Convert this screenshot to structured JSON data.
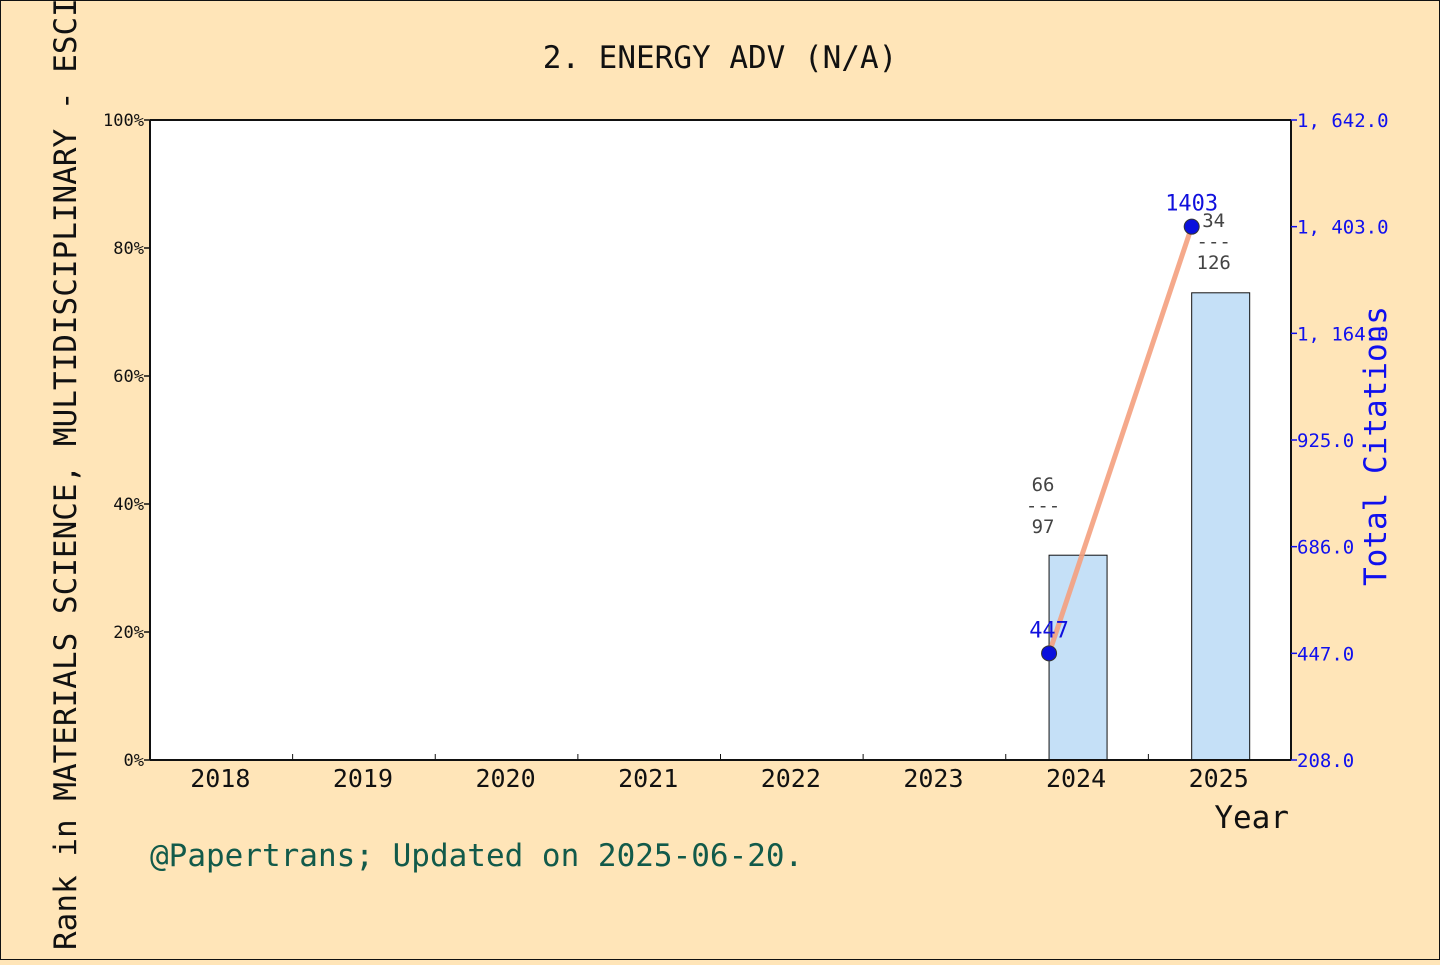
{
  "chart_data": {
    "type": "bar",
    "title": "2. ENERGY ADV (N/A)",
    "categories": [
      "2018",
      "2019",
      "2020",
      "2021",
      "2022",
      "2023",
      "2024",
      "2025"
    ],
    "xlabel": "Year",
    "ylabel": "Rank in MATERIALS SCIENCE, MULTIDISCIPLINARY - ESCI",
    "y2label": "Total Citations",
    "ylim": [
      0,
      100
    ],
    "y_ticks": [
      "0%",
      "20%",
      "40%",
      "60%",
      "80%",
      "100%"
    ],
    "y2lim": [
      208,
      1642
    ],
    "y2_ticks": [
      "208.0",
      "447.0",
      "686.0",
      "925.0",
      "1, 164.0",
      "1, 403.0",
      "1, 642.0"
    ],
    "bars": [
      {
        "category": "2024",
        "value": 32,
        "rank": "66",
        "total": "97"
      },
      {
        "category": "2025",
        "value": 73,
        "rank": "34",
        "total": "126"
      }
    ],
    "citations": [
      {
        "category": "2024",
        "value": 447,
        "label": "447"
      },
      {
        "category": "2025",
        "value": 1403,
        "label": "1403"
      }
    ],
    "grid": false,
    "colors": {
      "background": "#ffe5b8",
      "plot_background": "#ffffff",
      "bar_fill": "#c5e0f7",
      "line": "#f4a07e",
      "marker": "#0a10dd",
      "right_axis": "#1010ee",
      "credit": "#125a4a"
    }
  },
  "credit": "@Papertrans; Updated on 2025-06-20."
}
